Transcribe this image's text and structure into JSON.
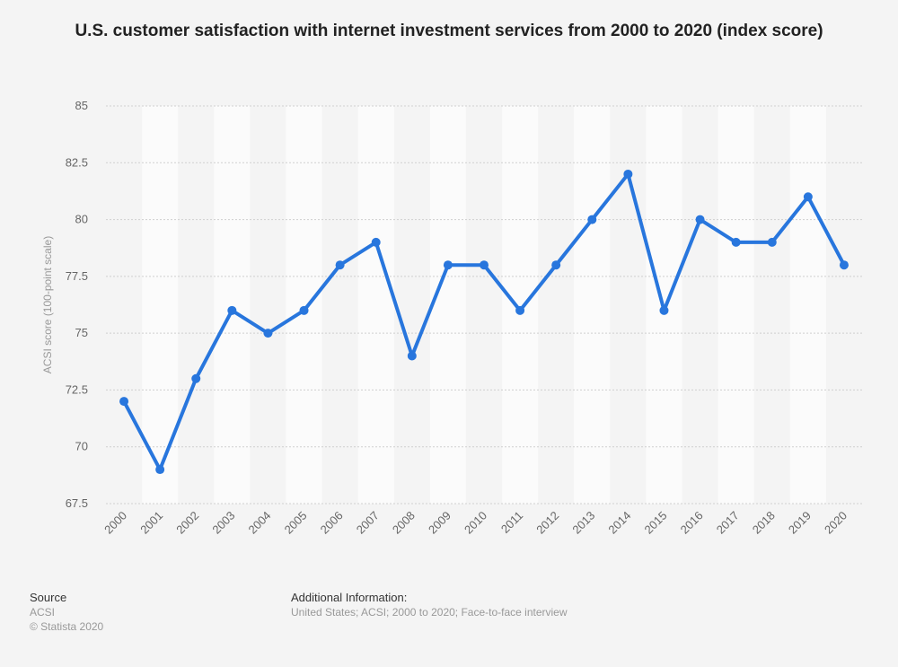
{
  "chart_data": {
    "type": "line",
    "title": "U.S. customer satisfaction with internet investment services from 2000 to 2020 (index score)",
    "xlabel": "",
    "ylabel": "ACSI score (100-point scale)",
    "ylim": [
      67.5,
      85
    ],
    "yticks": [
      "67.5",
      "70",
      "72.5",
      "75",
      "77.5",
      "80",
      "82.5",
      "85"
    ],
    "categories": [
      "2000",
      "2001",
      "2002",
      "2003",
      "2004",
      "2005",
      "2006",
      "2007",
      "2008",
      "2009",
      "2010",
      "2011",
      "2012",
      "2013",
      "2014",
      "2015",
      "2016",
      "2017",
      "2018",
      "2019",
      "2020"
    ],
    "values": [
      72,
      69,
      73,
      76,
      75,
      76,
      78,
      79,
      74,
      78,
      78,
      76,
      78,
      80,
      82,
      76,
      80,
      79,
      79,
      81,
      78
    ],
    "grid": true,
    "line_color": "#2876dd"
  },
  "footer": {
    "source_label": "Source",
    "source": "ACSI",
    "copyright": "© Statista 2020",
    "info_label": "Additional Information:",
    "info": "United States; ACSI; 2000 to 2020; Face-to-face interview"
  }
}
